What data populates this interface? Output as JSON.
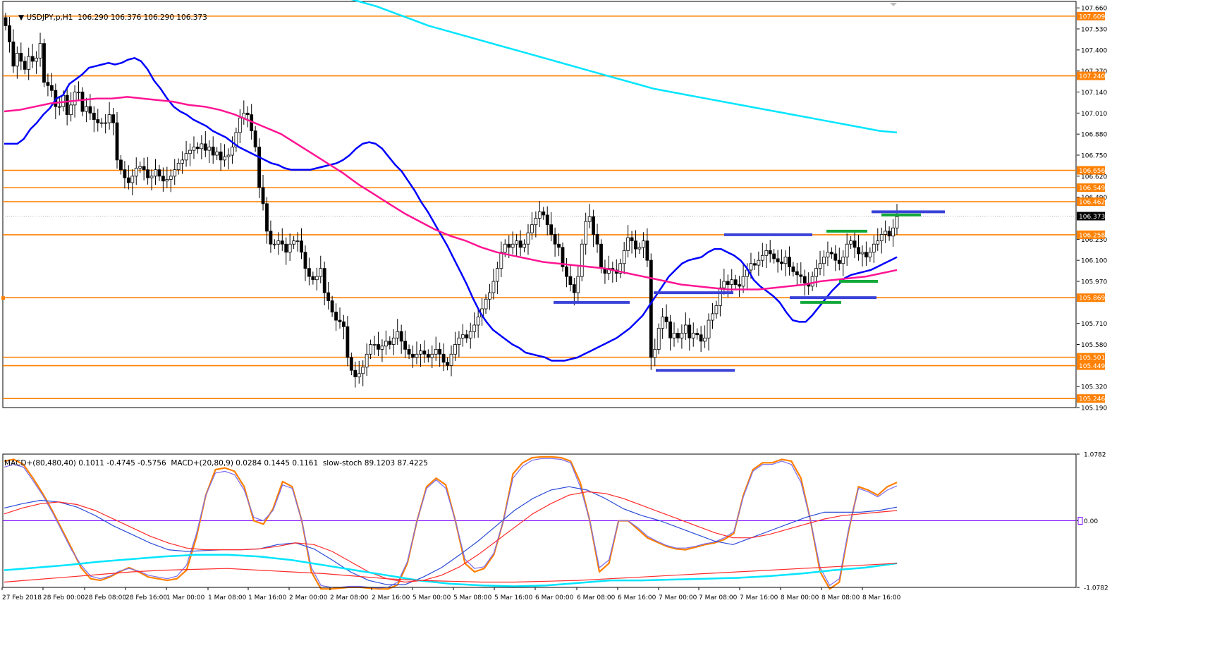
{
  "main_header": {
    "text": "USDJPY,p,H1  106.290 106.376 106.290 106.373"
  },
  "sub_header": {
    "text": "MACD+(80,480,40) 0.1011 -0.4745 -0.5756  MACD+(20,80,9) 0.0284 0.1445 0.1161  slow-stoch 89.1203 87.4225"
  },
  "colors": {
    "bull": "#ffffff",
    "bear": "#000000",
    "wick": "#000000",
    "level": "#ff8000",
    "fast_ma": "#0000ff",
    "slow_ma": "#ff1493",
    "long_ma": "#00e5ff",
    "blue_marks": "#3a42d8",
    "green_marks": "#13a83a",
    "stoch_k": "#ff8000",
    "stoch_d": "#7a6cf0",
    "macd_fast": "#2b4bd8",
    "macd_signal": "#ff2a2a",
    "zero_line": "#7a00ff",
    "long_macd": "#00e5ff",
    "long_signal": "#ff2a2a"
  },
  "chart_data": [
    {
      "type": "candlestick",
      "title": "USDJPY,p,H1",
      "ylim": [
        105.19,
        107.7
      ],
      "y_tick_labels": [
        "107.660",
        "107.530",
        "107.400",
        "107.270",
        "107.140",
        "107.010",
        "106.880",
        "106.750",
        "106.620",
        "106.490",
        "106.230",
        "106.100",
        "105.970",
        "105.710",
        "105.580",
        "105.320",
        "105.190"
      ],
      "current_price": "106.373",
      "levels": [
        "107.609",
        "107.240",
        "106.656",
        "106.549",
        "106.462",
        "106.258",
        "105.869",
        "105.501",
        "105.449",
        "105.246"
      ],
      "x_labels": [
        "27 Feb 2018",
        "28 Feb 00:00",
        "28 Feb 08:00",
        "28 Feb 16:00",
        "1 Mar 00:00",
        "1 Mar 08:00",
        "1 Mar 16:00",
        "2 Mar 00:00",
        "2 Mar 08:00",
        "2 Mar 16:00",
        "5 Mar 00:00",
        "5 Mar 08:00",
        "5 Mar 16:00",
        "6 Mar 00:00",
        "6 Mar 08:00",
        "6 Mar 16:00",
        "7 Mar 00:00",
        "7 Mar 08:00",
        "7 Mar 16:00",
        "8 Mar 00:00",
        "8 Mar 08:00",
        "8 Mar 16:00"
      ],
      "close_series": [
        107.55,
        107.45,
        107.3,
        107.38,
        107.33,
        107.28,
        107.36,
        107.33,
        107.35,
        107.44,
        107.2,
        107.18,
        107.15,
        107.05,
        107.05,
        107.12,
        107.0,
        107.06,
        107.14,
        107.14,
        107.02,
        107.05,
        107.01,
        106.97,
        106.95,
        106.95,
        106.95,
        107.0,
        106.95,
        106.72,
        106.66,
        106.61,
        106.58,
        106.62,
        106.67,
        106.68,
        106.66,
        106.61,
        106.62,
        106.66,
        106.62,
        106.59,
        106.6,
        106.62,
        106.66,
        106.7,
        106.72,
        106.76,
        106.78,
        106.8,
        106.79,
        106.82,
        106.78,
        106.8,
        106.75,
        106.77,
        106.72,
        106.74,
        106.75,
        106.8,
        106.89,
        106.98,
        107.01,
        107.0,
        106.9,
        106.8,
        106.55,
        106.45,
        106.28,
        106.2,
        106.2,
        106.22,
        106.2,
        106.15,
        106.2,
        106.22,
        106.22,
        106.15,
        106.05,
        106.0,
        105.98,
        106.0,
        106.05,
        105.9,
        105.85,
        105.78,
        105.73,
        105.72,
        105.69,
        105.5,
        105.42,
        105.38,
        105.4,
        105.44,
        105.52,
        105.58,
        105.58,
        105.55,
        105.57,
        105.6,
        105.58,
        105.62,
        105.66,
        105.6,
        105.55,
        105.52,
        105.5,
        105.52,
        105.54,
        105.52,
        105.5,
        105.52,
        105.55,
        105.52,
        105.47,
        105.45,
        105.52,
        105.58,
        105.62,
        105.64,
        105.62,
        105.66,
        105.7,
        105.75,
        105.8,
        105.86,
        105.9,
        105.97,
        106.05,
        106.15,
        106.2,
        106.18,
        106.2,
        106.22,
        106.18,
        106.2,
        106.27,
        106.32,
        106.36,
        106.4,
        106.38,
        106.32,
        106.26,
        106.2,
        106.18,
        106.06,
        106.0,
        105.95,
        105.9,
        106.0,
        106.2,
        106.34,
        106.37,
        106.26,
        106.2,
        106.05,
        106.02,
        106.05,
        106.04,
        106.02,
        106.08,
        106.16,
        106.24,
        106.22,
        106.17,
        106.18,
        106.22,
        106.1,
        105.5,
        105.55,
        105.68,
        105.75,
        105.72,
        105.62,
        105.65,
        105.62,
        105.65,
        105.7,
        105.62,
        105.65,
        105.64,
        105.6,
        105.62,
        105.73,
        105.77,
        105.82,
        105.93,
        105.97,
        105.95,
        105.98,
        105.95,
        105.94,
        106.0,
        106.04,
        106.08,
        106.07,
        106.1,
        106.13,
        106.16,
        106.14,
        106.11,
        106.09,
        106.08,
        106.12,
        106.06,
        106.03,
        106.01,
        106.0,
        105.96,
        105.94,
        106.0,
        106.05,
        106.08,
        106.12,
        106.15,
        106.14,
        106.1,
        106.08,
        106.12,
        106.2,
        106.22,
        106.18,
        106.14,
        106.15,
        106.12,
        106.15,
        106.2,
        106.22,
        106.26,
        106.28,
        106.25,
        106.3,
        106.37
      ],
      "fast_ma_series": [
        106.82,
        106.82,
        106.82,
        106.85,
        106.91,
        106.95,
        107.0,
        107.04,
        107.1,
        107.12,
        107.19,
        107.22,
        107.25,
        107.29,
        107.3,
        107.31,
        107.32,
        107.31,
        107.32,
        107.34,
        107.35,
        107.33,
        107.28,
        107.21,
        107.16,
        107.1,
        107.05,
        107.02,
        107.0,
        106.97,
        106.95,
        106.93,
        106.9,
        106.88,
        106.86,
        106.83,
        106.8,
        106.78,
        106.76,
        106.74,
        106.72,
        106.7,
        106.69,
        106.67,
        106.66,
        106.66,
        106.66,
        106.66,
        106.67,
        106.68,
        106.69,
        106.7,
        106.72,
        106.75,
        106.79,
        106.82,
        106.83,
        106.82,
        106.79,
        106.74,
        106.69,
        106.65,
        106.59,
        106.53,
        106.46,
        106.4,
        106.33,
        106.26,
        106.19,
        106.11,
        106.03,
        105.95,
        105.86,
        105.78,
        105.72,
        105.67,
        105.64,
        105.61,
        105.58,
        105.56,
        105.53,
        105.52,
        105.51,
        105.5,
        105.48,
        105.48,
        105.48,
        105.49,
        105.5,
        105.52,
        105.54,
        105.56,
        105.58,
        105.6,
        105.62,
        105.65,
        105.68,
        105.72,
        105.76,
        105.82,
        105.88,
        105.94,
        106.0,
        106.04,
        106.08,
        106.1,
        106.11,
        106.12,
        106.15,
        106.17,
        106.17,
        106.15,
        106.13,
        106.1,
        106.05,
        105.98,
        105.94,
        105.91,
        105.88,
        105.84,
        105.78,
        105.73,
        105.72,
        105.72,
        105.76,
        105.81,
        105.86,
        105.91,
        105.95,
        105.99,
        106.01,
        106.02,
        106.03,
        106.04,
        106.06,
        106.08,
        106.1,
        106.12
      ],
      "slow_ma_series": [
        107.02,
        107.03,
        107.05,
        107.07,
        107.08,
        107.09,
        107.1,
        107.1,
        107.11,
        107.1,
        107.09,
        107.08,
        107.06,
        107.05,
        107.03,
        107.0,
        106.96,
        106.92,
        106.88,
        106.82,
        106.76,
        106.7,
        106.64,
        106.57,
        106.51,
        106.45,
        106.39,
        106.34,
        106.29,
        106.25,
        106.22,
        106.18,
        106.15,
        106.13,
        106.11,
        106.09,
        106.08,
        106.07,
        106.06,
        106.05,
        106.03,
        106.01,
        105.99,
        105.97,
        105.95,
        105.94,
        105.93,
        105.92,
        105.92,
        105.92,
        105.93,
        105.94,
        105.95,
        105.97,
        105.98,
        105.99,
        106.0,
        106.02,
        106.04
      ],
      "long_ma_series": [
        107.76,
        107.73,
        107.7,
        107.67,
        107.63,
        107.59,
        107.55,
        107.52,
        107.49,
        107.46,
        107.43,
        107.4,
        107.37,
        107.34,
        107.31,
        107.28,
        107.25,
        107.22,
        107.19,
        107.16,
        107.14,
        107.12,
        107.1,
        107.08,
        107.06,
        107.04,
        107.02,
        107.0,
        106.98,
        106.96,
        106.94,
        106.92,
        106.9,
        106.89
      ]
    },
    {
      "type": "line",
      "title": "MACD+(80,480,40) MACD+(20,80,9) slow-stoch",
      "ylim": [
        -0.0782,
        0.0782
      ],
      "y_tick_labels": [
        "1.0782",
        "0.00",
        "-1.0782"
      ],
      "x_labels": [
        "27 Feb 2018",
        "28 Feb 00:00",
        "28 Feb 08:00",
        "28 Feb 16:00",
        "1 Mar 00:00",
        "1 Mar 08:00",
        "1 Mar 16:00",
        "2 Mar 00:00",
        "2 Mar 08:00",
        "2 Mar 16:00",
        "5 Mar 00:00",
        "5 Mar 08:00",
        "5 Mar 16:00",
        "6 Mar 00:00",
        "6 Mar 08:00",
        "6 Mar 16:00",
        "7 Mar 00:00",
        "7 Mar 08:00",
        "7 Mar 16:00",
        "8 Mar 00:00",
        "8 Mar 08:00",
        "8 Mar 16:00"
      ],
      "series": [
        {
          "values": [
            0.07,
            0.072,
            0.066,
            0.05,
            0.032,
            0.012,
            -0.01,
            -0.032,
            -0.055,
            -0.068,
            -0.07,
            -0.066,
            -0.06,
            -0.055,
            -0.06,
            -0.066,
            -0.068,
            -0.07,
            -0.068,
            -0.058,
            -0.02,
            0.03,
            0.06,
            0.062,
            0.058,
            0.04,
            0.0,
            -0.004,
            0.014,
            0.046,
            0.04,
            0.0,
            -0.06,
            -0.08,
            -0.08,
            -0.079,
            -0.078,
            -0.078,
            -0.079,
            -0.08,
            -0.08,
            -0.075,
            -0.05,
            0.0,
            0.04,
            0.05,
            0.042,
            0.0,
            -0.05,
            -0.06,
            -0.056,
            -0.04,
            0.0,
            0.055,
            0.068,
            0.074,
            0.075,
            0.075,
            0.074,
            0.07,
            0.045,
            0.0,
            -0.06,
            -0.05,
            0.0,
            0.0,
            -0.01,
            -0.02,
            -0.025,
            -0.03,
            -0.033,
            -0.034,
            -0.031,
            -0.028,
            -0.026,
            -0.022,
            -0.015,
            0.03,
            0.06,
            0.068,
            0.068,
            0.072,
            0.07,
            0.05,
            0.0,
            -0.06,
            -0.08,
            -0.072,
            -0.01,
            0.04,
            0.036,
            0.03,
            0.04,
            0.045
          ]
        },
        {
          "values": [
            0.063,
            0.066,
            0.063,
            0.047,
            0.03,
            0.01,
            -0.012,
            -0.034,
            -0.052,
            -0.065,
            -0.068,
            -0.065,
            -0.059,
            -0.056,
            -0.059,
            -0.064,
            -0.066,
            -0.068,
            -0.065,
            -0.052,
            -0.016,
            0.03,
            0.056,
            0.058,
            0.054,
            0.036,
            0.004,
            0.0,
            0.012,
            0.042,
            0.038,
            0.0,
            -0.055,
            -0.076,
            -0.078,
            -0.078,
            -0.077,
            -0.077,
            -0.078,
            -0.079,
            -0.078,
            -0.072,
            -0.048,
            0.0,
            0.038,
            0.048,
            0.038,
            0.0,
            -0.045,
            -0.056,
            -0.054,
            -0.038,
            0.0,
            0.05,
            0.064,
            0.071,
            0.073,
            0.073,
            0.072,
            0.068,
            0.04,
            0.0,
            -0.055,
            -0.046,
            0.0,
            0.0,
            -0.008,
            -0.018,
            -0.024,
            -0.029,
            -0.032,
            -0.032,
            -0.03,
            -0.027,
            -0.025,
            -0.02,
            -0.013,
            0.028,
            0.058,
            0.066,
            0.066,
            0.07,
            0.066,
            0.045,
            0.0,
            -0.055,
            -0.076,
            -0.068,
            -0.008,
            0.038,
            0.034,
            0.028,
            0.036,
            0.041
          ]
        },
        {
          "values": [
            0.015,
            0.02,
            0.024,
            0.022,
            0.016,
            0.006,
            -0.006,
            -0.016,
            -0.026,
            -0.034,
            -0.036,
            -0.035,
            -0.034,
            -0.034,
            -0.033,
            -0.028,
            -0.026,
            -0.033,
            -0.046,
            -0.06,
            -0.07,
            -0.075,
            -0.075,
            -0.066,
            -0.055,
            -0.04,
            -0.024,
            -0.006,
            0.012,
            0.026,
            0.036,
            0.04,
            0.036,
            0.026,
            0.014,
            0.006,
            0.0,
            -0.008,
            -0.016,
            -0.024,
            -0.028,
            -0.02,
            -0.012,
            -0.004,
            0.004,
            0.01,
            0.01,
            0.01,
            0.012,
            0.016
          ]
        },
        {
          "values": [
            0.008,
            0.015,
            0.02,
            0.022,
            0.019,
            0.012,
            0.002,
            -0.008,
            -0.018,
            -0.026,
            -0.032,
            -0.034,
            -0.034,
            -0.034,
            -0.033,
            -0.03,
            -0.026,
            -0.028,
            -0.036,
            -0.048,
            -0.06,
            -0.068,
            -0.072,
            -0.07,
            -0.064,
            -0.054,
            -0.04,
            -0.024,
            -0.008,
            0.008,
            0.02,
            0.03,
            0.034,
            0.032,
            0.026,
            0.018,
            0.01,
            0.002,
            -0.006,
            -0.014,
            -0.02,
            -0.02,
            -0.016,
            -0.01,
            -0.004,
            0.002,
            0.006,
            0.008,
            0.01,
            0.012
          ]
        },
        {
          "values": [
            -0.058,
            -0.055,
            -0.052,
            -0.048,
            -0.045,
            -0.042,
            -0.04,
            -0.04,
            -0.042,
            -0.046,
            -0.052,
            -0.058,
            -0.064,
            -0.07,
            -0.074,
            -0.076,
            -0.077,
            -0.076,
            -0.073,
            -0.07,
            -0.07,
            -0.069,
            -0.068,
            -0.067,
            -0.065,
            -0.062,
            -0.058,
            -0.055,
            -0.05
          ]
        },
        {
          "values": [
            -0.072,
            -0.069,
            -0.066,
            -0.063,
            -0.06,
            -0.058,
            -0.057,
            -0.056,
            -0.058,
            -0.06,
            -0.062,
            -0.065,
            -0.068,
            -0.07,
            -0.071,
            -0.072,
            -0.072,
            -0.071,
            -0.07,
            -0.068,
            -0.066,
            -0.064,
            -0.062,
            -0.06,
            -0.058,
            -0.056,
            -0.054,
            -0.052,
            -0.05
          ]
        }
      ]
    }
  ]
}
